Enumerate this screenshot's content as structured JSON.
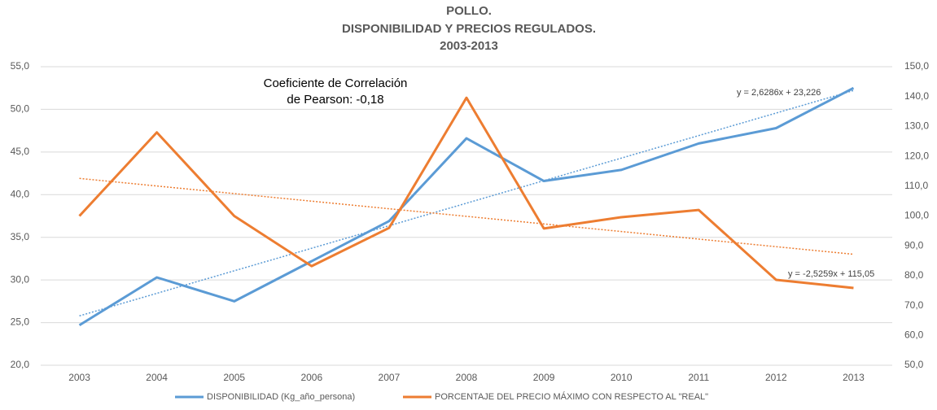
{
  "chart_data": {
    "type": "line",
    "title": [
      "POLLO.",
      "DISPONIBILIDAD Y PRECIOS REGULADOS.",
      "2003-2013"
    ],
    "annotation": [
      "Coeficiente de Correlación",
      "de Pearson: -0,18"
    ],
    "categories": [
      "2003",
      "2004",
      "2005",
      "2006",
      "2007",
      "2008",
      "2009",
      "2010",
      "2011",
      "2012",
      "2013"
    ],
    "series": [
      {
        "name": "DISPONIBILIDAD (Kg_año_persona)",
        "color": "#5b9bd5",
        "axis": "y",
        "values": [
          24.7,
          30.3,
          27.5,
          32.2,
          36.9,
          46.6,
          41.6,
          42.9,
          46.0,
          47.8,
          52.5
        ],
        "trendline": "y = 2,6286x + 23,226"
      },
      {
        "name": "PORCENTAJE DEL PRECIO MÁXIMO CON RESPECTO AL \"REAL\"",
        "color": "#ed7d31",
        "axis": "y2",
        "values": [
          100,
          128,
          100,
          83.2,
          96,
          139.6,
          95.8,
          99.6,
          102,
          78.6,
          75.9
        ],
        "trendline": "y = -2,5259x + 115,05"
      }
    ],
    "ylim": [
      20,
      55
    ],
    "yticks": [
      {
        "value": 20,
        "label": "20,0"
      },
      {
        "value": 25,
        "label": "25,0"
      },
      {
        "value": 30,
        "label": "30,0"
      },
      {
        "value": 35,
        "label": "35,0"
      },
      {
        "value": 40,
        "label": "40,0"
      },
      {
        "value": 45,
        "label": "45,0"
      },
      {
        "value": 50,
        "label": "50,0"
      },
      {
        "value": 55,
        "label": "55,0"
      }
    ],
    "y2lim": [
      50,
      150
    ],
    "y2ticks": [
      {
        "value": 50,
        "label": "50,0"
      },
      {
        "value": 60,
        "label": "60,0"
      },
      {
        "value": 70,
        "label": "70,0"
      },
      {
        "value": 80,
        "label": "80,0"
      },
      {
        "value": 90,
        "label": "90,0"
      },
      {
        "value": 100,
        "label": "100,0"
      },
      {
        "value": 110,
        "label": "110,0"
      },
      {
        "value": 120,
        "label": "120,0"
      },
      {
        "value": 130,
        "label": "130,0"
      },
      {
        "value": 140,
        "label": "140,0"
      },
      {
        "value": 150,
        "label": "150,0"
      }
    ],
    "grid": true,
    "legend": "bottom"
  }
}
